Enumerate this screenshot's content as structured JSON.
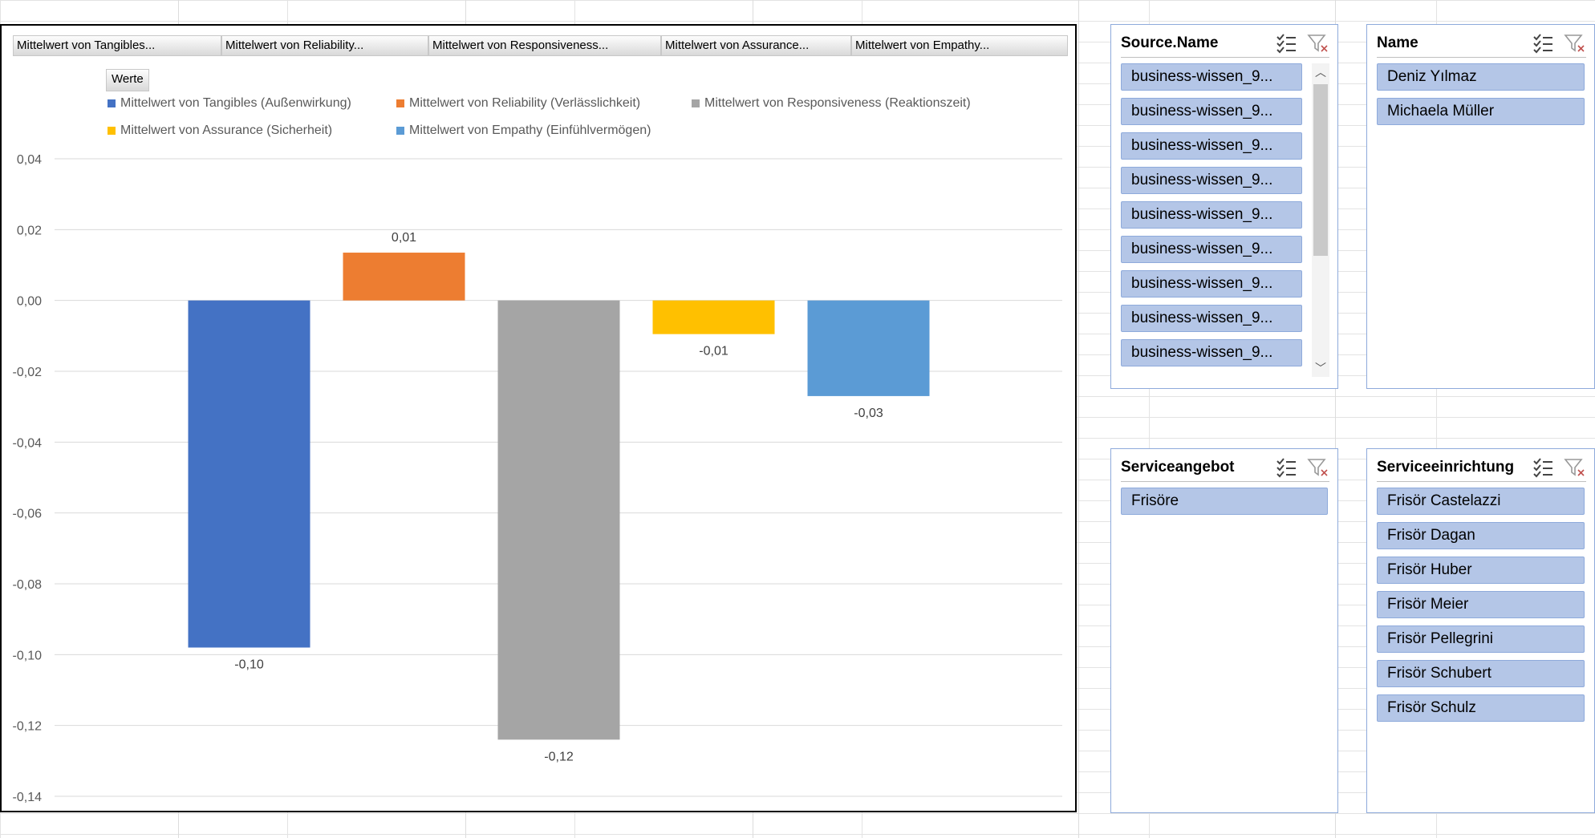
{
  "chart": {
    "field_buttons": [
      "Mittelwert von Tangibles...",
      "Mittelwert von Reliability...",
      "Mittelwert von Responsiveness...",
      "Mittelwert von Assurance...",
      "Mittelwert von Empathy..."
    ],
    "werte_label": "Werte"
  },
  "chart_data": {
    "type": "bar",
    "ylim": [
      -0.14,
      0.04
    ],
    "yticks": [
      "0,04",
      "0,02",
      "0,00",
      "-0,02",
      "-0,04",
      "-0,06",
      "-0,08",
      "-0,10",
      "-0,12",
      "-0,14"
    ],
    "grid": true,
    "legend_position": "top",
    "series": [
      {
        "name": "Mittelwert von Tangibles (Außenwirkung)",
        "value": -0.098,
        "label": "-0,10",
        "color": "#4472c4"
      },
      {
        "name": "Mittelwert von Reliability (Verlässlichkeit)",
        "value": 0.0135,
        "label": "0,01",
        "color": "#ed7d31"
      },
      {
        "name": "Mittelwert von Responsiveness (Reaktionszeit)",
        "value": -0.124,
        "label": "-0,12",
        "color": "#a5a5a5"
      },
      {
        "name": "Mittelwert von Assurance (Sicherheit)",
        "value": -0.0095,
        "label": "-0,01",
        "color": "#ffc000"
      },
      {
        "name": "Mittelwert von Empathy (Einfühlvermögen)",
        "value": -0.027,
        "label": "-0,03",
        "color": "#5b9bd5"
      }
    ]
  },
  "slicers": {
    "source": {
      "title": "Source.Name",
      "items": [
        "business-wissen_9...",
        "business-wissen_9...",
        "business-wissen_9...",
        "business-wissen_9...",
        "business-wissen_9...",
        "business-wissen_9...",
        "business-wissen_9...",
        "business-wissen_9...",
        "business-wissen_9..."
      ]
    },
    "name": {
      "title": "Name",
      "items": [
        "Deniz Yılmaz",
        "Michaela Müller"
      ]
    },
    "serviceangebot": {
      "title": "Serviceangebot",
      "items": [
        "Frisöre"
      ]
    },
    "serviceeinrichtung": {
      "title": "Serviceeinrichtung",
      "items": [
        "Frisör Castelazzi",
        "Frisör Dagan",
        "Frisör Huber",
        "Frisör Meier",
        "Frisör Pellegrini",
        "Frisör Schubert",
        "Frisör Schulz"
      ]
    }
  }
}
